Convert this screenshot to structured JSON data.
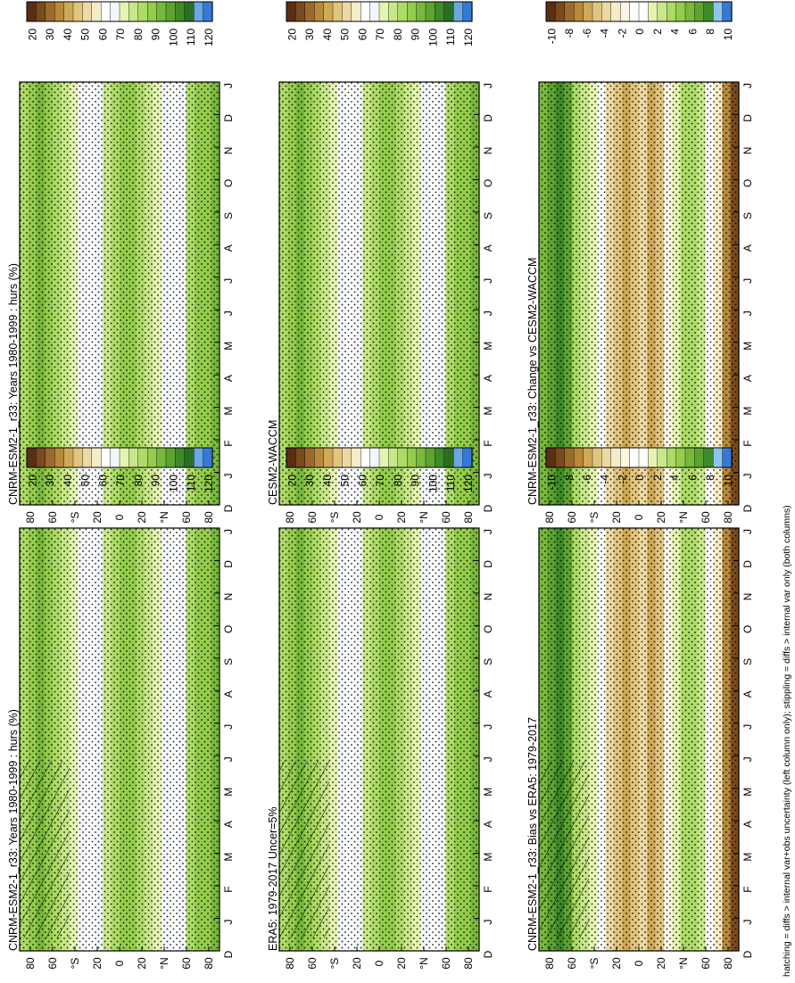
{
  "figure": {
    "footnote": "hatching = diffs > internal var+obs uncertainty (left column only); stippling = diffs > internal var only (both columns)"
  },
  "colors": {
    "abs_scale": [
      "#5a2e13",
      "#7a4a1f",
      "#9b6a2c",
      "#b8893c",
      "#cfa957",
      "#e1c47e",
      "#ecd9a3",
      "#f4ecc8",
      "#ffffff",
      "#f3f6fb",
      "#e4f3b0",
      "#c8e78a",
      "#addb67",
      "#94cc4c",
      "#78b83c",
      "#5ea330",
      "#3f8a28",
      "#2a6e22",
      "#6aa7e6",
      "#3579d6"
    ],
    "diff_scale": [
      "#5a2e13",
      "#7a4a1f",
      "#9b6a2c",
      "#b8893c",
      "#cfa957",
      "#e1c47e",
      "#ecd9a3",
      "#f4ecc8",
      "#fbf7e4",
      "#ffffff",
      "#ffffff",
      "#e4f3b0",
      "#c8e78a",
      "#addb67",
      "#94cc4c",
      "#78b83c",
      "#5ea330",
      "#3f8a28",
      "#8cc6f0",
      "#3579d6"
    ],
    "frame": "#000000"
  },
  "chart_data": [
    {
      "type": "heatmap",
      "title": "CNRM-ESM2-1_r33: Years 1980-1999 : hurs (%)",
      "x_ticks": [
        "D",
        "J",
        "F",
        "M",
        "A",
        "M",
        "J",
        "J",
        "A",
        "S",
        "O",
        "N",
        "D",
        "J"
      ],
      "y_ticks": [
        "80",
        "60",
        "°N",
        "20",
        "0",
        "20",
        "°S",
        "60",
        "80"
      ],
      "colorbar_ticks": [
        "120",
        "110",
        "100",
        "90",
        "80",
        "70",
        "60",
        "50",
        "40",
        "30",
        "20"
      ],
      "scale": "abs",
      "hatched": true,
      "stippled": true
    },
    {
      "type": "heatmap",
      "title": "CNRM-ESM2-1_r33: Years 1980-1999 : hurs (%)",
      "x_ticks": [
        "D",
        "J",
        "F",
        "M",
        "A",
        "M",
        "J",
        "J",
        "A",
        "S",
        "O",
        "N",
        "D",
        "J"
      ],
      "y_ticks": [
        "80",
        "60",
        "°N",
        "20",
        "0",
        "20",
        "°S",
        "60",
        "80"
      ],
      "colorbar_ticks": [
        "120",
        "110",
        "100",
        "90",
        "80",
        "70",
        "60",
        "50",
        "40",
        "30",
        "20"
      ],
      "scale": "abs",
      "hatched": false,
      "stippled": true
    },
    {
      "type": "heatmap",
      "title": "ERA5: 1979-2017 Uncer=5%",
      "x_ticks": [
        "D",
        "J",
        "F",
        "M",
        "A",
        "M",
        "J",
        "J",
        "A",
        "S",
        "O",
        "N",
        "D",
        "J"
      ],
      "y_ticks": [
        "80",
        "60",
        "°N",
        "20",
        "0",
        "20",
        "°S",
        "60",
        "80"
      ],
      "colorbar_ticks": [
        "120",
        "110",
        "100",
        "90",
        "80",
        "70",
        "60",
        "50",
        "40",
        "30",
        "20"
      ],
      "scale": "abs",
      "hatched": true,
      "stippled": true
    },
    {
      "type": "heatmap",
      "title": "CESM2-WACCM",
      "x_ticks": [
        "D",
        "J",
        "F",
        "M",
        "A",
        "M",
        "J",
        "J",
        "A",
        "S",
        "O",
        "N",
        "D",
        "J"
      ],
      "y_ticks": [
        "80",
        "60",
        "°N",
        "20",
        "0",
        "20",
        "°S",
        "60",
        "80"
      ],
      "colorbar_ticks": [
        "120",
        "110",
        "100",
        "90",
        "80",
        "70",
        "60",
        "50",
        "40",
        "30",
        "20"
      ],
      "scale": "abs",
      "hatched": false,
      "stippled": true
    },
    {
      "type": "heatmap",
      "title": "CNRM-ESM2-1_r33: Bias vs ERA5: 1979-2017",
      "x_ticks": [
        "D",
        "J",
        "F",
        "M",
        "A",
        "M",
        "J",
        "J",
        "A",
        "S",
        "O",
        "N",
        "D",
        "J"
      ],
      "y_ticks": [
        "80",
        "60",
        "°N",
        "20",
        "0",
        "20",
        "°S",
        "60",
        "80"
      ],
      "colorbar_ticks": [
        "10",
        "8",
        "6",
        "4",
        "2",
        "0",
        "-2",
        "-4",
        "-6",
        "-8",
        "-10"
      ],
      "scale": "diff",
      "hatched": true,
      "stippled": true
    },
    {
      "type": "heatmap",
      "title": "CNRM-ESM2-1_r33: Change vs CESM2-WACCM",
      "x_ticks": [
        "D",
        "J",
        "F",
        "M",
        "A",
        "M",
        "J",
        "J",
        "A",
        "S",
        "O",
        "N",
        "D",
        "J"
      ],
      "y_ticks": [
        "80",
        "60",
        "°N",
        "20",
        "0",
        "20",
        "°S",
        "60",
        "80"
      ],
      "colorbar_ticks": [
        "10",
        "8",
        "6",
        "4",
        "2",
        "0",
        "-2",
        "-4",
        "-6",
        "-8",
        "-10"
      ],
      "scale": "diff",
      "hatched": false,
      "stippled": true
    }
  ]
}
